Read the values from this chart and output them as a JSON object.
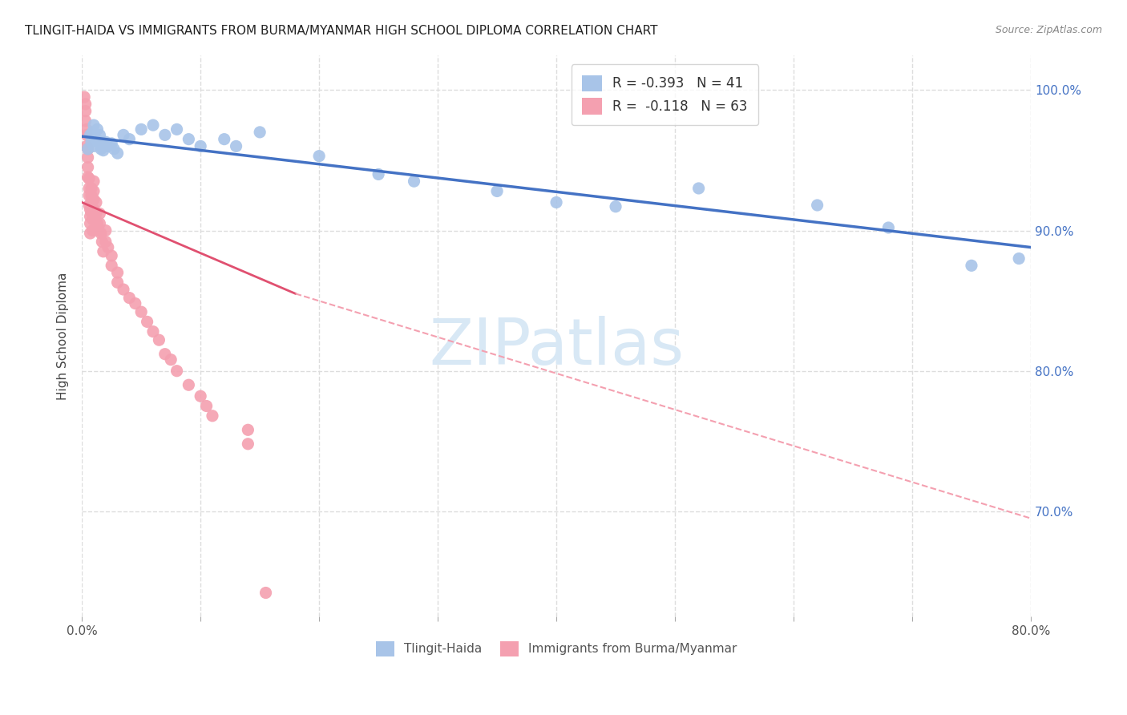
{
  "title": "TLINGIT-HAIDA VS IMMIGRANTS FROM BURMA/MYANMAR HIGH SCHOOL DIPLOMA CORRELATION CHART",
  "source": "Source: ZipAtlas.com",
  "ylabel": "High School Diploma",
  "watermark": "ZIPatlas",
  "ytick_labels": [
    "100.0%",
    "90.0%",
    "80.0%",
    "70.0%"
  ],
  "ytick_positions": [
    1.0,
    0.9,
    0.8,
    0.7
  ],
  "xlim": [
    0.0,
    0.8
  ],
  "ylim": [
    0.625,
    1.025
  ],
  "blue_scatter_x": [
    0.005,
    0.007,
    0.008,
    0.009,
    0.01,
    0.01,
    0.01,
    0.012,
    0.013,
    0.015,
    0.015,
    0.016,
    0.017,
    0.018,
    0.02,
    0.022,
    0.025,
    0.027,
    0.03,
    0.035,
    0.04,
    0.05,
    0.06,
    0.07,
    0.08,
    0.09,
    0.1,
    0.12,
    0.13,
    0.15,
    0.2,
    0.25,
    0.28,
    0.35,
    0.4,
    0.45,
    0.52,
    0.62,
    0.68,
    0.75,
    0.79
  ],
  "blue_scatter_y": [
    0.958,
    0.968,
    0.963,
    0.97,
    0.975,
    0.967,
    0.96,
    0.965,
    0.972,
    0.968,
    0.963,
    0.958,
    0.96,
    0.957,
    0.963,
    0.96,
    0.962,
    0.958,
    0.955,
    0.968,
    0.965,
    0.972,
    0.975,
    0.968,
    0.972,
    0.965,
    0.96,
    0.965,
    0.96,
    0.97,
    0.953,
    0.94,
    0.935,
    0.928,
    0.92,
    0.917,
    0.93,
    0.918,
    0.902,
    0.875,
    0.88
  ],
  "pink_scatter_x": [
    0.002,
    0.003,
    0.003,
    0.003,
    0.004,
    0.004,
    0.004,
    0.005,
    0.005,
    0.005,
    0.005,
    0.006,
    0.006,
    0.006,
    0.006,
    0.007,
    0.007,
    0.007,
    0.007,
    0.008,
    0.008,
    0.008,
    0.008,
    0.009,
    0.009,
    0.01,
    0.01,
    0.01,
    0.01,
    0.01,
    0.012,
    0.012,
    0.013,
    0.014,
    0.015,
    0.015,
    0.016,
    0.017,
    0.018,
    0.02,
    0.02,
    0.022,
    0.025,
    0.025,
    0.03,
    0.03,
    0.035,
    0.04,
    0.045,
    0.05,
    0.055,
    0.06,
    0.065,
    0.07,
    0.075,
    0.08,
    0.09,
    0.1,
    0.105,
    0.11,
    0.14,
    0.14,
    0.155
  ],
  "pink_scatter_y": [
    0.995,
    0.99,
    0.985,
    0.978,
    0.972,
    0.968,
    0.96,
    0.958,
    0.952,
    0.945,
    0.938,
    0.937,
    0.93,
    0.925,
    0.918,
    0.915,
    0.91,
    0.905,
    0.898,
    0.93,
    0.925,
    0.92,
    0.913,
    0.908,
    0.9,
    0.935,
    0.928,
    0.922,
    0.915,
    0.908,
    0.92,
    0.912,
    0.905,
    0.9,
    0.912,
    0.905,
    0.898,
    0.892,
    0.885,
    0.9,
    0.892,
    0.888,
    0.882,
    0.875,
    0.87,
    0.863,
    0.858,
    0.852,
    0.848,
    0.842,
    0.835,
    0.828,
    0.822,
    0.812,
    0.808,
    0.8,
    0.79,
    0.782,
    0.775,
    0.768,
    0.758,
    0.748,
    0.642
  ],
  "blue_line_x": [
    0.0,
    0.8
  ],
  "blue_line_y": [
    0.967,
    0.888
  ],
  "pink_solid_line_x": [
    0.0,
    0.18
  ],
  "pink_solid_line_y": [
    0.92,
    0.855
  ],
  "pink_dashed_line_x": [
    0.18,
    0.8
  ],
  "pink_dashed_line_y": [
    0.855,
    0.695
  ],
  "blue_color": "#4472c4",
  "pink_color": "#e05070",
  "blue_scatter_color": "#a8c4e8",
  "pink_scatter_color": "#f4a0b0",
  "grid_color": "#dddddd",
  "watermark_color": "#d8e8f5",
  "title_fontsize": 11,
  "source_fontsize": 9,
  "legend_label_blue": "R = -0.393   N = 41",
  "legend_label_pink": "R =  -0.118   N = 63",
  "bottom_legend_blue": "Tlingit-Haida",
  "bottom_legend_pink": "Immigrants from Burma/Myanmar"
}
